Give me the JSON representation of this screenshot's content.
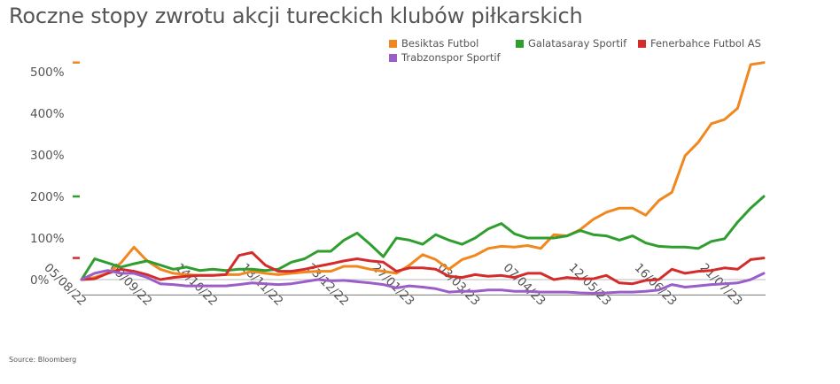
{
  "chart_data": {
    "type": "line",
    "title": "Roczne stopy zwrotu akcji tureckich klubów piłkarskich",
    "source": "Source: Bloomberg",
    "xlabel": "",
    "ylabel": "",
    "ylim": [
      -30,
      540
    ],
    "yticks": [
      0,
      100,
      200,
      300,
      400,
      500
    ],
    "ytick_labels": [
      "0%",
      "100%",
      "200%",
      "300%",
      "400%",
      "500%"
    ],
    "x_ticks": [
      {
        "label": "05/08/22",
        "week": 0
      },
      {
        "label": "09/09/22",
        "week": 5
      },
      {
        "label": "14/10/22",
        "week": 10
      },
      {
        "label": "18/11/22",
        "week": 15
      },
      {
        "label": "23/12/22",
        "week": 20
      },
      {
        "label": "27/01/23",
        "week": 25
      },
      {
        "label": "03/03/23",
        "week": 30
      },
      {
        "label": "07/04/23",
        "week": 35
      },
      {
        "label": "12/05/23",
        "week": 40
      },
      {
        "label": "16/06/23",
        "week": 45
      },
      {
        "label": "21/07/23",
        "week": 50
      }
    ],
    "grid": false,
    "legend_position": "top-right",
    "series": [
      {
        "name": "Besiktas Futbol",
        "color": "#f0871f",
        "values": [
          0,
          5,
          15,
          40,
          78,
          45,
          25,
          15,
          12,
          10,
          10,
          12,
          12,
          20,
          15,
          12,
          15,
          18,
          20,
          20,
          32,
          32,
          25,
          20,
          15,
          35,
          60,
          48,
          25,
          48,
          58,
          75,
          80,
          78,
          82,
          75,
          108,
          105,
          120,
          145,
          162,
          172,
          172,
          155,
          190,
          210,
          298,
          330,
          375,
          385,
          412,
          517,
          522
        ]
      },
      {
        "name": "Galatasaray Sportif",
        "color": "#2f9e2f",
        "values": [
          0,
          50,
          40,
          30,
          38,
          45,
          35,
          25,
          30,
          22,
          25,
          22,
          25,
          25,
          22,
          25,
          42,
          50,
          68,
          68,
          95,
          112,
          85,
          55,
          100,
          95,
          85,
          108,
          95,
          85,
          100,
          122,
          135,
          110,
          100,
          100,
          100,
          105,
          118,
          108,
          105,
          95,
          105,
          88,
          80,
          78,
          78,
          75,
          92,
          98,
          138,
          172,
          200
        ]
      },
      {
        "name": "Fenerbahce Futbol AS",
        "color": "#d42b2b",
        "values": [
          0,
          2,
          15,
          25,
          20,
          12,
          0,
          5,
          8,
          10,
          10,
          12,
          58,
          65,
          35,
          20,
          20,
          25,
          32,
          38,
          45,
          50,
          45,
          42,
          20,
          28,
          28,
          25,
          8,
          5,
          12,
          8,
          10,
          5,
          15,
          15,
          0,
          5,
          2,
          2,
          10,
          -8,
          -10,
          -2,
          0,
          25,
          15,
          20,
          22,
          28,
          25,
          48,
          52
        ]
      },
      {
        "name": "Trabzonspor Sportif",
        "color": "#9b5ec8",
        "values": [
          0,
          15,
          22,
          15,
          15,
          5,
          -10,
          -12,
          -15,
          -15,
          -15,
          -15,
          -12,
          -8,
          -10,
          -12,
          -10,
          -5,
          0,
          -3,
          -2,
          -5,
          -8,
          -12,
          -20,
          -15,
          -18,
          -22,
          -30,
          -28,
          -28,
          -25,
          -25,
          -28,
          -28,
          -30,
          -30,
          -30,
          -32,
          -33,
          -32,
          -30,
          -30,
          -28,
          -25,
          -12,
          -18,
          -15,
          -12,
          -10,
          -8,
          0,
          15
        ]
      }
    ]
  }
}
